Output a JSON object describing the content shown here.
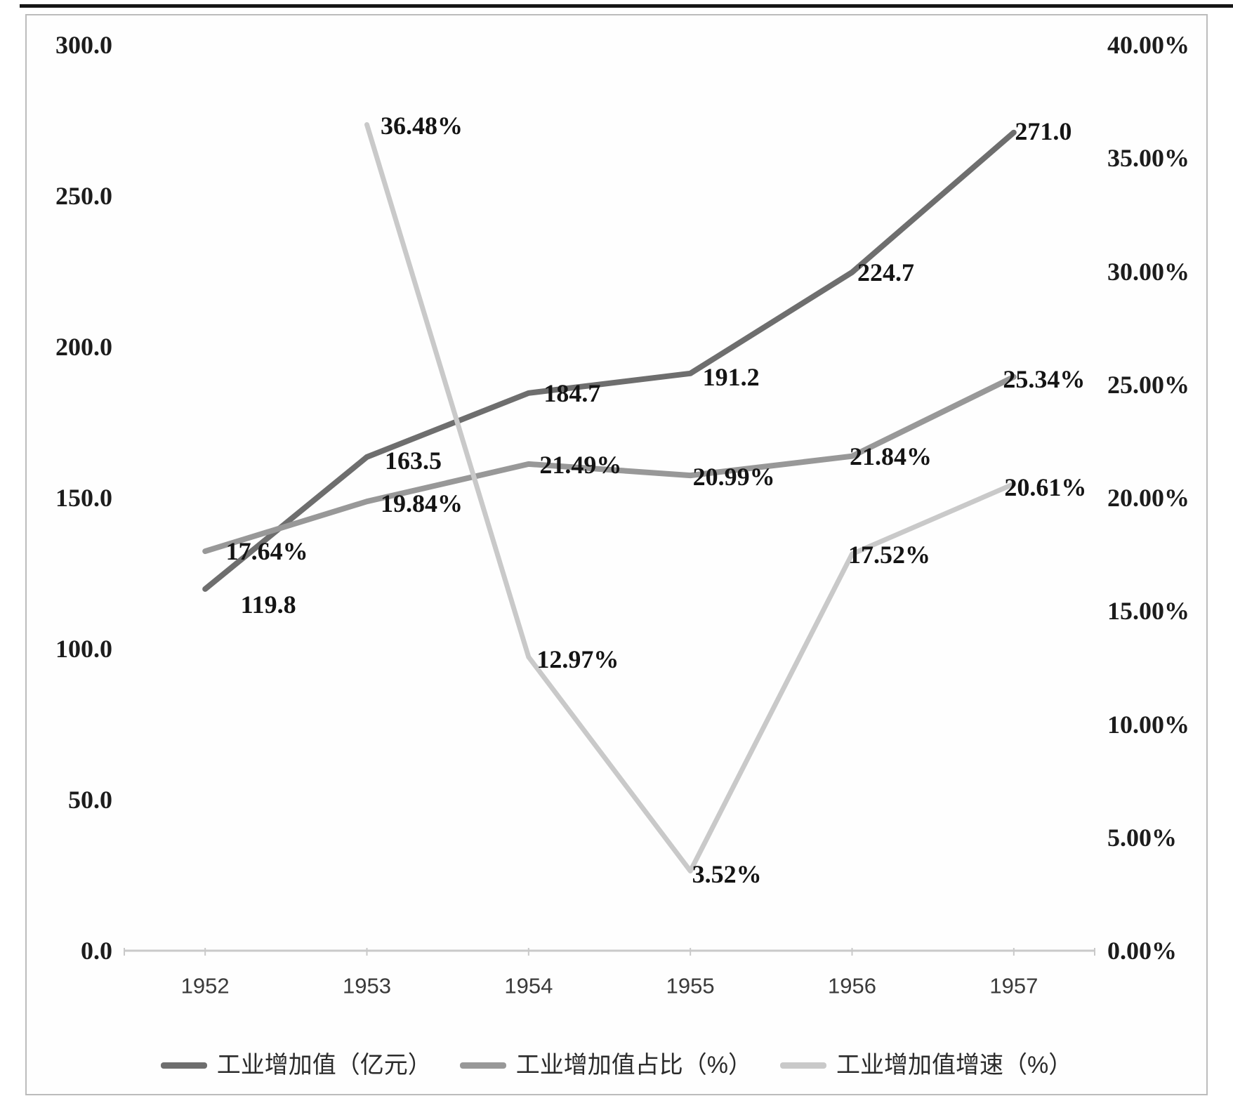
{
  "chart_data": {
    "type": "line",
    "title": "",
    "categories": [
      "1952",
      "1953",
      "1954",
      "1955",
      "1956",
      "1957"
    ],
    "series": [
      {
        "name": "工业增加值（亿元）",
        "axis": "left",
        "color": "#6e6e6e",
        "values": [
          119.8,
          163.5,
          184.7,
          191.2,
          224.7,
          271.0
        ],
        "point_labels": [
          "119.8",
          "163.5",
          "184.7",
          "191.2",
          "224.7",
          "271.0"
        ]
      },
      {
        "name": "工业增加值占比（%）",
        "axis": "right",
        "color": "#989898",
        "values": [
          17.64,
          19.84,
          21.49,
          20.99,
          21.84,
          25.34
        ],
        "point_labels": [
          "17.64%",
          "19.84%",
          "21.49%",
          "20.99%",
          "21.84%",
          "25.34%"
        ]
      },
      {
        "name": "工业增加值增速（%）",
        "axis": "right",
        "color": "#c9c9c9",
        "values": [
          null,
          36.48,
          12.97,
          3.52,
          17.52,
          20.61
        ],
        "point_labels": [
          null,
          "36.48%",
          "12.97%",
          "3.52%",
          "17.52%",
          "20.61%"
        ]
      }
    ],
    "left_axis": {
      "min": 0,
      "max": 300,
      "step": 50,
      "tick_labels": [
        "0.0",
        "50.0",
        "100.0",
        "150.0",
        "200.0",
        "250.0",
        "300.0"
      ]
    },
    "right_axis": {
      "min": 0,
      "max": 40,
      "step": 5,
      "tick_labels": [
        "0.00%",
        "5.00%",
        "10.00%",
        "15.00%",
        "20.00%",
        "25.00%",
        "30.00%",
        "35.00%",
        "40.00%"
      ]
    },
    "grid": false,
    "legend_position": "bottom"
  }
}
